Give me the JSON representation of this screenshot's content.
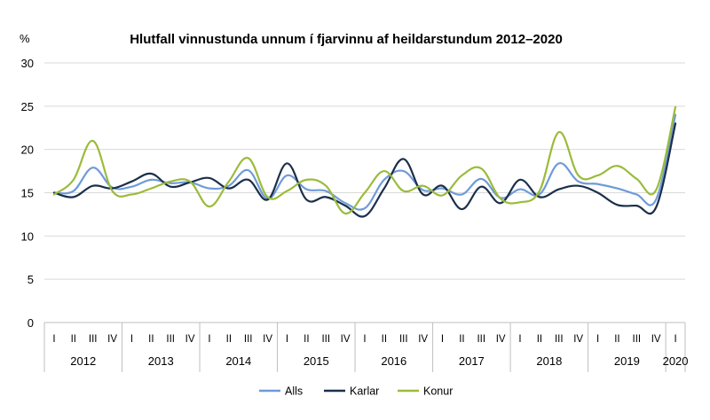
{
  "chart_data": {
    "type": "line",
    "title": "Hlutfall vinnustunda unnum í fjarvinnu af heildarstundum 2012–2020",
    "ylabel": "%",
    "xlabel": "",
    "ylim": [
      0,
      30
    ],
    "yticks": [
      0,
      5,
      10,
      15,
      20,
      25,
      30
    ],
    "grid": true,
    "legend_position": "bottom",
    "quarter_labels": [
      "I",
      "II",
      "III",
      "IV",
      "I",
      "II",
      "III",
      "IV",
      "I",
      "II",
      "III",
      "IV",
      "I",
      "II",
      "III",
      "IV",
      "I",
      "II",
      "III",
      "IV",
      "I",
      "II",
      "III",
      "IV",
      "I",
      "II",
      "III",
      "IV",
      "I",
      "II",
      "III",
      "IV",
      "I"
    ],
    "year_groups": [
      {
        "label": "2012",
        "quarters": 4
      },
      {
        "label": "2013",
        "quarters": 4
      },
      {
        "label": "2014",
        "quarters": 4
      },
      {
        "label": "2015",
        "quarters": 4
      },
      {
        "label": "2016",
        "quarters": 4
      },
      {
        "label": "2017",
        "quarters": 4
      },
      {
        "label": "2018",
        "quarters": 4
      },
      {
        "label": "2019",
        "quarters": 4
      },
      {
        "label": "2020",
        "quarters": 1
      }
    ],
    "series": [
      {
        "name": "Alls",
        "color": "#6f9bd8",
        "values": [
          15.0,
          15.2,
          17.9,
          15.6,
          15.7,
          16.5,
          16.1,
          16.2,
          15.5,
          15.8,
          17.6,
          14.3,
          17.0,
          15.4,
          15.2,
          13.8,
          13.2,
          16.5,
          17.5,
          15.3,
          15.5,
          14.8,
          16.6,
          14.4,
          15.4,
          14.8,
          18.4,
          16.3,
          16.0,
          15.5,
          14.8,
          14.2,
          24.0
        ]
      },
      {
        "name": "Karlar",
        "color": "#1b2f4a",
        "values": [
          15.0,
          14.5,
          15.8,
          15.5,
          16.3,
          17.2,
          15.7,
          16.2,
          16.7,
          15.5,
          16.5,
          14.2,
          18.4,
          14.2,
          14.5,
          13.5,
          12.3,
          15.5,
          18.9,
          14.8,
          15.8,
          13.1,
          15.7,
          13.8,
          16.5,
          14.5,
          15.4,
          15.8,
          15.0,
          13.6,
          13.5,
          13.3,
          23.0
        ]
      },
      {
        "name": "Konur",
        "color": "#9bbb3b",
        "values": [
          14.8,
          16.5,
          21.0,
          15.2,
          14.8,
          15.5,
          16.3,
          16.3,
          13.4,
          16.3,
          19.0,
          14.5,
          15.2,
          16.5,
          15.8,
          12.6,
          15.0,
          17.5,
          15.2,
          15.8,
          14.7,
          17.0,
          17.8,
          14.3,
          13.9,
          15.2,
          22.0,
          17.0,
          17.0,
          18.1,
          16.6,
          15.3,
          24.9
        ]
      }
    ]
  }
}
